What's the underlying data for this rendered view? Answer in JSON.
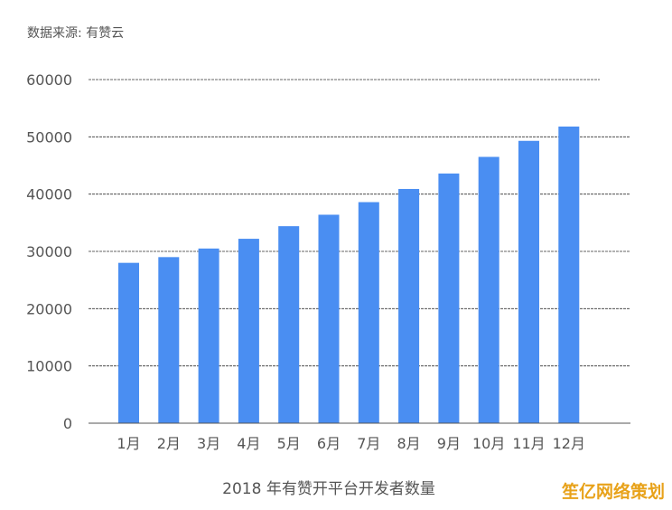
{
  "source_label": "数据来源: 有赞云",
  "watermark": "笙亿网络策划",
  "colors": {
    "bar": "#4a8ef2",
    "axis": "#555555",
    "grid": "#333333",
    "text": "#555555"
  },
  "chart_data": {
    "type": "bar",
    "title": "",
    "xlabel": "2018 年有赞开平台开发者数量",
    "ylabel": "",
    "categories": [
      "1月",
      "2月",
      "3月",
      "4月",
      "5月",
      "6月",
      "7月",
      "8月",
      "9月",
      "10月",
      "11月",
      "12月"
    ],
    "values": [
      28000,
      29000,
      30500,
      32200,
      34400,
      36400,
      38600,
      40900,
      43600,
      46500,
      49300,
      51800
    ],
    "ylim": [
      0,
      60000
    ],
    "yticks": [
      0,
      10000,
      20000,
      30000,
      40000,
      50000,
      60000
    ],
    "grid": true,
    "legend": "none"
  }
}
